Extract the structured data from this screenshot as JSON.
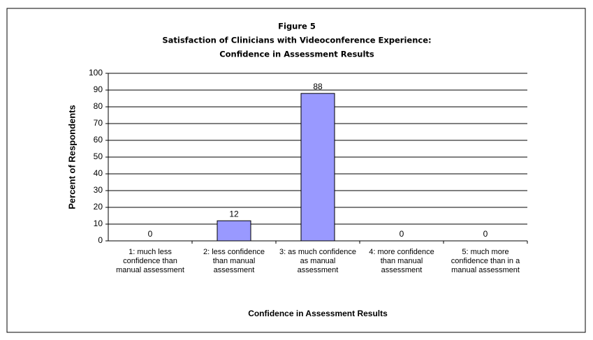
{
  "chart_data": {
    "type": "bar",
    "title": "Figure 5",
    "subtitle": [
      "Satisfaction of Clinicians with Videoconference Experience:",
      "Confidence in Assessment Results"
    ],
    "x_label": "Confidence in Assessment Results",
    "y_label": "Percent of Respondents",
    "categories": [
      "1: much less confidence than manual assessment",
      "2: less confidence than manual assessment",
      "3: as much confidence as manual assessment",
      "4: more confidence than manual assessment",
      "5: much more confidence than in a manual assessment"
    ],
    "values": [
      0,
      12,
      88,
      0,
      0
    ],
    "color": "#9999ff",
    "ylim": [
      0,
      100
    ],
    "yticks": [
      0,
      10,
      20,
      30,
      40,
      50,
      60,
      70,
      80,
      90,
      100
    ],
    "grid": true
  }
}
